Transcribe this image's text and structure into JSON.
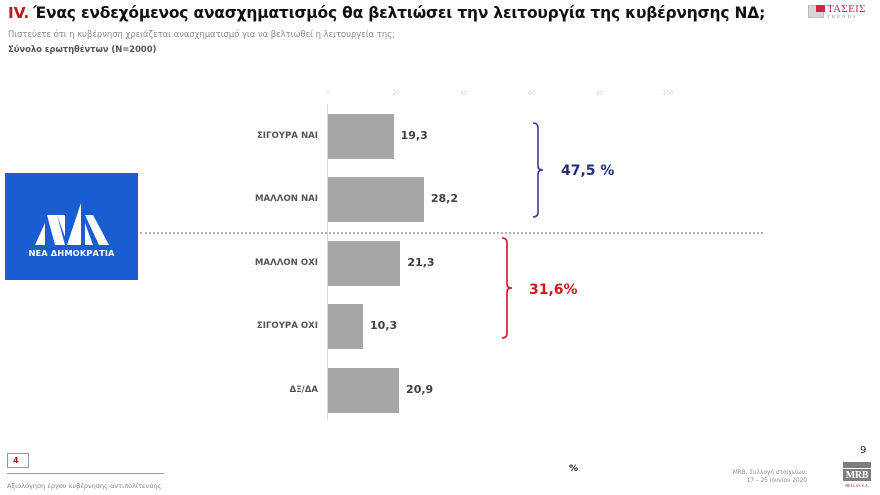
{
  "header": {
    "number": "IV.",
    "title": "Ένας ενδεχόμενος ανασχηματισμός θα βελτιώσει την λειτουργία της κυβέρνησης ΝΔ;",
    "subtitle": "Πιστεύετε ότι η κυβέρνηση χρειάζεται ανασχηματισμό για να βελτιωθεί η λειτουργεία της;",
    "base": "Σύνολο ερωτηθέντων (Ν=2000)"
  },
  "logos": {
    "tases_name": "ΤΑΣΕΙΣ",
    "tases_sub": "TRENDS",
    "party_name": "ΝΕΑ ΔΗΜΟΚΡΑΤΙΑ",
    "mrb_name": "MRB",
    "mrb_sub": "HELLAS S.A."
  },
  "colors": {
    "bar": "#a6a6a6",
    "positive_group": "#1f2f7a",
    "positive_bracket": "#3a3aa0",
    "negative_group": "#d0161f",
    "party_blue": "#1a5dd0",
    "accent_red": "#c0161f"
  },
  "chart_data": {
    "type": "bar",
    "orientation": "horizontal",
    "title": "Ένας ενδεχόμενος ανασχηματισμός θα βελτιώσει την λειτουργία της κυβέρνησης ΝΔ;",
    "xlabel": "%",
    "ylabel": "",
    "xlim": [
      0,
      100
    ],
    "ticks": [
      "0",
      "20",
      "40",
      "60",
      "80",
      "100"
    ],
    "grid": false,
    "categories": [
      "ΣΙΓΟΥΡΑ ΝΑΙ",
      "ΜΑΛΛΟΝ ΝΑΙ",
      "ΜΑΛΛΟΝ ΟΧΙ",
      "ΣΙΓΟΥΡΑ ΟΧΙ",
      "ΔΞ/ΔΑ"
    ],
    "values": [
      19.3,
      28.2,
      21.3,
      10.3,
      20.9
    ],
    "value_labels": [
      "19,3",
      "28,2",
      "21,3",
      "10,3",
      "20,9"
    ],
    "annotations": [
      {
        "text": "47,5 %",
        "groups": [
          "ΣΙΓΟΥΡΑ ΝΑΙ",
          "ΜΑΛΛΟΝ ΝΑΙ"
        ],
        "color": "#1f2f7a"
      },
      {
        "text": "31,6%",
        "groups": [
          "ΜΑΛΛΟΝ ΟΧΙ",
          "ΣΙΓΟΥΡΑ ΟΧΙ"
        ],
        "color": "#d0161f"
      }
    ]
  },
  "footer": {
    "section_number": "4",
    "section_text": "Αξιολόγηση έργου κυβέρνησης-αντιπολίτευσης",
    "unit": "%",
    "source_line1": "MRB, Συλλογή στοιχείων:",
    "source_line2": "17 – 25 Ιουνίου 2020",
    "slide_number": "9"
  }
}
